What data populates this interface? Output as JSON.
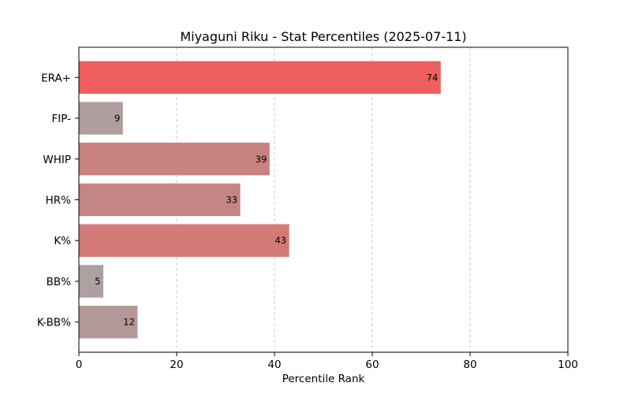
{
  "chart_data": {
    "type": "bar",
    "orientation": "horizontal",
    "title": "Miyaguni Riku - Stat Percentiles (2025-07-11)",
    "xlabel": "Percentile Rank",
    "categories": [
      "ERA+",
      "FIP-",
      "WHIP",
      "HR%",
      "K%",
      "BB%",
      "K-BB%"
    ],
    "values": [
      74,
      9,
      39,
      33,
      43,
      5,
      12
    ],
    "colors": [
      "#EF5F5F",
      "#B09D9D",
      "#C88280",
      "#C48684",
      "#D37A78",
      "#ACA0A0",
      "#B49897"
    ],
    "xlim": [
      0,
      100
    ],
    "xticks": [
      0,
      20,
      40,
      60,
      80,
      100
    ],
    "grid": {
      "axis": "x",
      "style": "dashed"
    },
    "data_labels": true,
    "legend": "none"
  }
}
